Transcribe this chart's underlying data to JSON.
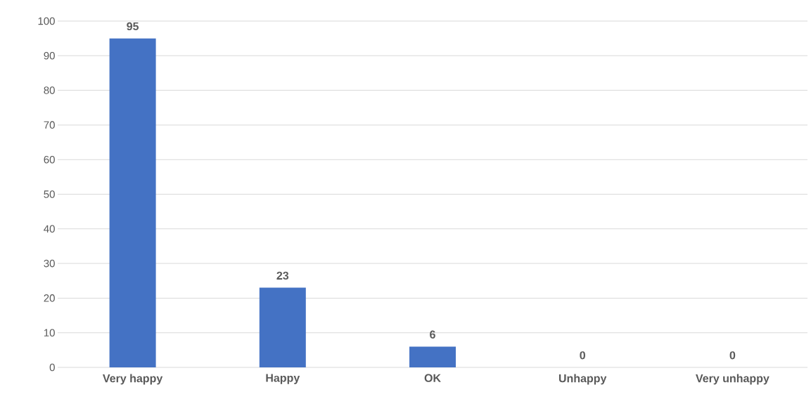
{
  "chart_data": {
    "type": "bar",
    "categories": [
      "Very happy",
      "Happy",
      "OK",
      "Unhappy",
      "Very unhappy"
    ],
    "values": [
      95,
      23,
      6,
      0,
      0
    ],
    "color": "#4472c4",
    "ylim": [
      0,
      100
    ],
    "yticks": [
      0,
      10,
      20,
      30,
      40,
      50,
      60,
      70,
      80,
      90,
      100
    ],
    "grid": "y",
    "data_labels": true
  }
}
